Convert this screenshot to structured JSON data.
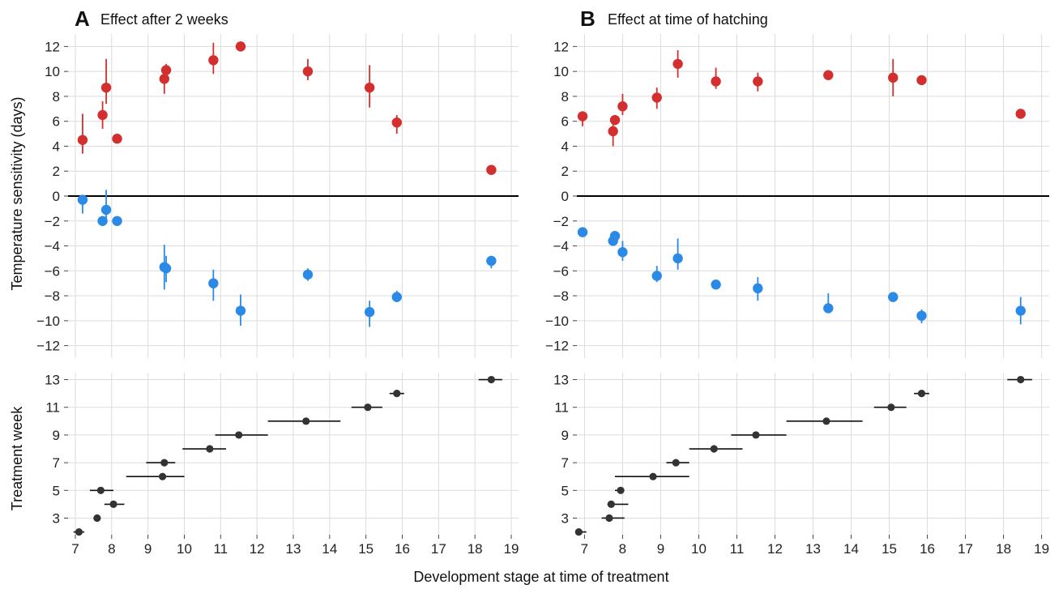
{
  "colors": {
    "warm": "#d32f2f",
    "cold": "#2b8ae6",
    "treatment": "#333333",
    "zero_line": "#000000",
    "grid": "#dcdcdc"
  },
  "labels": {
    "shared_xlabel": "Development stage at time of treatment",
    "top_ylabel": "Temperature sensitivity (days)",
    "bottom_ylabel": "Treatment week"
  },
  "panels": [
    {
      "letter": "A",
      "title": "Effect after 2 weeks"
    },
    {
      "letter": "B",
      "title": "Effect at time of hatching"
    }
  ],
  "chart_data": [
    {
      "id": "A-top",
      "type": "scatter",
      "panel": "A",
      "title": "Effect after 2 weeks",
      "xlabel": "",
      "ylabel": "Temperature sensitivity (days)",
      "xlim": [
        6.8,
        19.2
      ],
      "ylim": [
        -13,
        13
      ],
      "xticks": [
        7,
        8,
        9,
        10,
        11,
        12,
        13,
        14,
        15,
        16,
        17,
        18,
        19
      ],
      "yticks": [
        -12,
        -10,
        -8,
        -6,
        -4,
        -2,
        0,
        2,
        4,
        6,
        8,
        10,
        12
      ],
      "grid": true,
      "zero_line": true,
      "series": [
        {
          "color_key": "warm",
          "points": [
            {
              "x": 7.2,
              "y": 4.5,
              "lo": 3.4,
              "hi": 6.6
            },
            {
              "x": 7.75,
              "y": 6.5,
              "lo": 5.4,
              "hi": 7.6
            },
            {
              "x": 7.85,
              "y": 8.7,
              "lo": 7.4,
              "hi": 11.0
            },
            {
              "x": 8.15,
              "y": 4.6,
              "lo": 4.3,
              "hi": 4.9
            },
            {
              "x": 9.45,
              "y": 9.4,
              "lo": 8.2,
              "hi": 10.1
            },
            {
              "x": 9.5,
              "y": 10.1,
              "lo": 9.7,
              "hi": 10.6
            },
            {
              "x": 10.8,
              "y": 10.9,
              "lo": 9.8,
              "hi": 12.3
            },
            {
              "x": 11.55,
              "y": 12.0,
              "lo": 11.7,
              "hi": 12.4
            },
            {
              "x": 13.4,
              "y": 10.0,
              "lo": 9.3,
              "hi": 11.0
            },
            {
              "x": 15.1,
              "y": 8.7,
              "lo": 7.1,
              "hi": 10.5
            },
            {
              "x": 15.85,
              "y": 5.9,
              "lo": 5.0,
              "hi": 6.5
            },
            {
              "x": 18.45,
              "y": 2.1,
              "lo": 2.1,
              "hi": 2.1
            }
          ]
        },
        {
          "color_key": "cold",
          "points": [
            {
              "x": 7.2,
              "y": -0.3,
              "lo": -1.4,
              "hi": 0.1
            },
            {
              "x": 7.75,
              "y": -2.0,
              "lo": -2.0,
              "hi": -2.0
            },
            {
              "x": 7.85,
              "y": -1.1,
              "lo": -2.2,
              "hi": 0.5
            },
            {
              "x": 8.15,
              "y": -2.0,
              "lo": -2.0,
              "hi": -2.0
            },
            {
              "x": 9.45,
              "y": -5.7,
              "lo": -7.5,
              "hi": -3.9
            },
            {
              "x": 9.5,
              "y": -5.8,
              "lo": -6.9,
              "hi": -4.8
            },
            {
              "x": 10.8,
              "y": -7.0,
              "lo": -8.4,
              "hi": -5.9
            },
            {
              "x": 11.55,
              "y": -9.2,
              "lo": -10.4,
              "hi": -7.9
            },
            {
              "x": 13.4,
              "y": -6.3,
              "lo": -6.8,
              "hi": -5.8
            },
            {
              "x": 15.1,
              "y": -9.3,
              "lo": -10.5,
              "hi": -8.4
            },
            {
              "x": 15.85,
              "y": -8.1,
              "lo": -8.5,
              "hi": -7.6
            },
            {
              "x": 18.45,
              "y": -5.2,
              "lo": -5.8,
              "hi": -4.8
            }
          ]
        }
      ]
    },
    {
      "id": "B-top",
      "type": "scatter",
      "panel": "B",
      "title": "Effect at time of hatching",
      "xlabel": "",
      "ylabel": "",
      "xlim": [
        6.8,
        19.2
      ],
      "ylim": [
        -13,
        13
      ],
      "xticks": [
        7,
        8,
        9,
        10,
        11,
        12,
        13,
        14,
        15,
        16,
        17,
        18,
        19
      ],
      "yticks": [
        -12,
        -10,
        -8,
        -6,
        -4,
        -2,
        0,
        2,
        4,
        6,
        8,
        10,
        12
      ],
      "grid": true,
      "zero_line": true,
      "series": [
        {
          "color_key": "warm",
          "points": [
            {
              "x": 6.95,
              "y": 6.4,
              "lo": 5.6,
              "hi": 6.8
            },
            {
              "x": 7.75,
              "y": 5.2,
              "lo": 4.0,
              "hi": 6.0
            },
            {
              "x": 7.8,
              "y": 6.1,
              "lo": 5.7,
              "hi": 6.5
            },
            {
              "x": 8.0,
              "y": 7.2,
              "lo": 6.5,
              "hi": 8.2
            },
            {
              "x": 8.9,
              "y": 7.9,
              "lo": 7.0,
              "hi": 8.7
            },
            {
              "x": 9.45,
              "y": 10.6,
              "lo": 9.5,
              "hi": 11.7
            },
            {
              "x": 10.45,
              "y": 9.2,
              "lo": 8.6,
              "hi": 10.3
            },
            {
              "x": 11.55,
              "y": 9.2,
              "lo": 8.4,
              "hi": 9.9
            },
            {
              "x": 13.4,
              "y": 9.7,
              "lo": 9.4,
              "hi": 10.1
            },
            {
              "x": 15.1,
              "y": 9.5,
              "lo": 8.0,
              "hi": 11.0
            },
            {
              "x": 15.85,
              "y": 9.3,
              "lo": 9.1,
              "hi": 9.4
            },
            {
              "x": 18.45,
              "y": 6.6,
              "lo": 6.4,
              "hi": 6.8
            }
          ]
        },
        {
          "color_key": "cold",
          "points": [
            {
              "x": 6.95,
              "y": -2.9,
              "lo": -3.1,
              "hi": -2.8
            },
            {
              "x": 7.75,
              "y": -3.6,
              "lo": -3.9,
              "hi": -3.3
            },
            {
              "x": 7.8,
              "y": -3.2,
              "lo": -3.5,
              "hi": -2.9
            },
            {
              "x": 8.0,
              "y": -4.5,
              "lo": -5.2,
              "hi": -3.6
            },
            {
              "x": 8.9,
              "y": -6.4,
              "lo": -6.9,
              "hi": -5.6
            },
            {
              "x": 9.45,
              "y": -5.0,
              "lo": -5.9,
              "hi": -3.4
            },
            {
              "x": 10.45,
              "y": -7.1,
              "lo": -7.5,
              "hi": -6.8
            },
            {
              "x": 11.55,
              "y": -7.4,
              "lo": -8.4,
              "hi": -6.5
            },
            {
              "x": 13.4,
              "y": -9.0,
              "lo": -9.0,
              "hi": -7.8
            },
            {
              "x": 15.1,
              "y": -8.1,
              "lo": -8.4,
              "hi": -7.9
            },
            {
              "x": 15.85,
              "y": -9.6,
              "lo": -10.2,
              "hi": -9.1
            },
            {
              "x": 18.45,
              "y": -9.2,
              "lo": -10.3,
              "hi": -8.1
            }
          ]
        }
      ]
    },
    {
      "id": "A-bottom",
      "type": "scatter",
      "panel": "A",
      "xlabel": "Development stage at time of treatment",
      "ylabel": "Treatment week",
      "xlim": [
        6.8,
        19.2
      ],
      "ylim": [
        1.8,
        13.5
      ],
      "xticks": [
        7,
        8,
        9,
        10,
        11,
        12,
        13,
        14,
        15,
        16,
        17,
        18,
        19
      ],
      "yticks": [
        3,
        5,
        7,
        9,
        11,
        13
      ],
      "grid": true,
      "series": [
        {
          "color_key": "treatment",
          "points": [
            {
              "week": 2,
              "stage": 7.1,
              "start": 6.95,
              "end": 7.25
            },
            {
              "week": 3,
              "stage": 7.6,
              "start": 7.5,
              "end": 7.7
            },
            {
              "week": 4,
              "stage": 8.05,
              "start": 7.8,
              "end": 8.35
            },
            {
              "week": 5,
              "stage": 7.7,
              "start": 7.4,
              "end": 8.05
            },
            {
              "week": 6,
              "stage": 9.4,
              "start": 8.4,
              "end": 10.0
            },
            {
              "week": 7,
              "stage": 9.45,
              "start": 8.95,
              "end": 9.75
            },
            {
              "week": 8,
              "stage": 10.7,
              "start": 9.95,
              "end": 11.15
            },
            {
              "week": 9,
              "stage": 11.5,
              "start": 10.85,
              "end": 12.3
            },
            {
              "week": 10,
              "stage": 13.35,
              "start": 12.3,
              "end": 14.3
            },
            {
              "week": 11,
              "stage": 15.05,
              "start": 14.6,
              "end": 15.45
            },
            {
              "week": 12,
              "stage": 15.85,
              "start": 15.65,
              "end": 16.05
            },
            {
              "week": 13,
              "stage": 18.45,
              "start": 18.1,
              "end": 18.75
            }
          ]
        }
      ]
    },
    {
      "id": "B-bottom",
      "type": "scatter",
      "panel": "B",
      "xlabel": "Development stage at time of treatment",
      "ylabel": "",
      "xlim": [
        6.8,
        19.2
      ],
      "ylim": [
        1.8,
        13.5
      ],
      "xticks": [
        7,
        8,
        9,
        10,
        11,
        12,
        13,
        14,
        15,
        16,
        17,
        18,
        19
      ],
      "yticks": [
        3,
        5,
        7,
        9,
        11,
        13
      ],
      "grid": true,
      "series": [
        {
          "color_key": "treatment",
          "points": [
            {
              "week": 2,
              "stage": 6.85,
              "start": 6.8,
              "end": 7.05
            },
            {
              "week": 3,
              "stage": 7.65,
              "start": 7.45,
              "end": 8.05
            },
            {
              "week": 4,
              "stage": 7.7,
              "start": 7.6,
              "end": 8.15
            },
            {
              "week": 5,
              "stage": 7.95,
              "start": 7.8,
              "end": 8.0
            },
            {
              "week": 6,
              "stage": 8.8,
              "start": 7.8,
              "end": 9.75
            },
            {
              "week": 7,
              "stage": 9.4,
              "start": 9.15,
              "end": 9.75
            },
            {
              "week": 8,
              "stage": 10.4,
              "start": 9.75,
              "end": 11.15
            },
            {
              "week": 9,
              "stage": 11.5,
              "start": 10.85,
              "end": 12.3
            },
            {
              "week": 10,
              "stage": 13.35,
              "start": 12.3,
              "end": 14.3
            },
            {
              "week": 11,
              "stage": 15.05,
              "start": 14.6,
              "end": 15.45
            },
            {
              "week": 12,
              "stage": 15.85,
              "start": 15.65,
              "end": 16.05
            },
            {
              "week": 13,
              "stage": 18.45,
              "start": 18.1,
              "end": 18.75
            }
          ]
        }
      ]
    }
  ]
}
